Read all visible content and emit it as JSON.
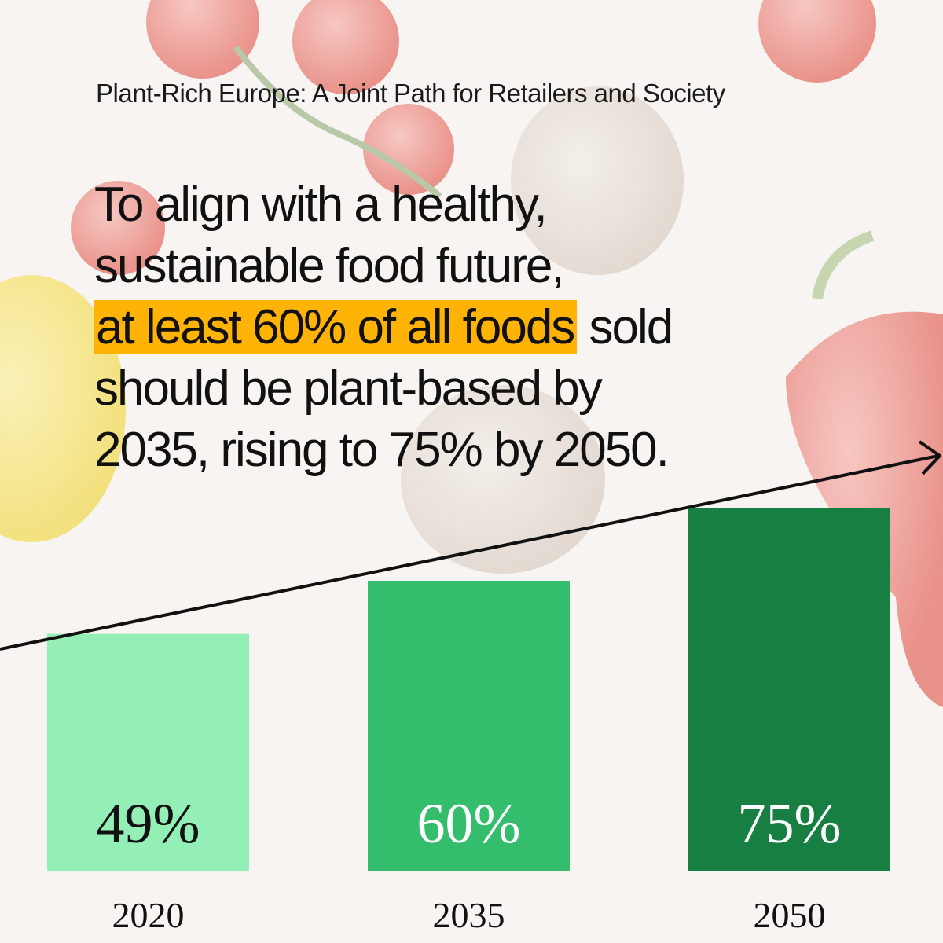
{
  "subtitle": "Plant-Rich Europe: A Joint Path for Retailers and Society",
  "headline": {
    "line1": "To align with a healthy,",
    "line2": "sustainable food future,",
    "highlight": "at least 60% of all foods",
    "line3_rest": " sold",
    "line4": "should be plant-based by",
    "line5": "2035, rising to 75% by 2050."
  },
  "colors": {
    "highlight": "#ffb305",
    "bar_2020": "#94efb7",
    "bar_2035": "#35bd6e",
    "bar_2050": "#177f41"
  },
  "chart_data": {
    "type": "bar",
    "categories": [
      "2020",
      "2035",
      "2050"
    ],
    "values": [
      49,
      60,
      75
    ],
    "data_labels": [
      "49%",
      "60%",
      "75%"
    ],
    "title": "",
    "xlabel": "",
    "ylabel": "",
    "ylim": [
      0,
      100
    ],
    "trend_arrow": true,
    "grid": false
  }
}
